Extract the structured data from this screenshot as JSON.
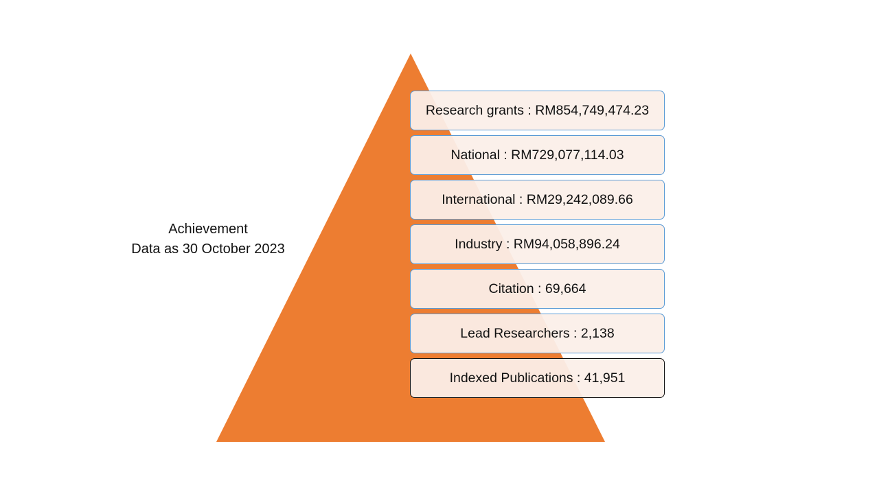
{
  "caption": {
    "line1": "Achievement",
    "line2": "Data as 30 October 2023"
  },
  "colors": {
    "pyramid": "#ED7D31",
    "box_fill": "#FBEFE9",
    "box_border": "#5B9BD5",
    "last_box_border": "#111111"
  },
  "items": [
    {
      "label": "Research grants : RM854,749,474.23"
    },
    {
      "label": "National : RM729,077,114.03"
    },
    {
      "label": "International : RM29,242,089.66"
    },
    {
      "label": "Industry : RM94,058,896.24"
    },
    {
      "label": "Citation : 69,664"
    },
    {
      "label": "Lead Researchers : 2,138"
    },
    {
      "label": "Indexed Publications : 41,951"
    }
  ]
}
